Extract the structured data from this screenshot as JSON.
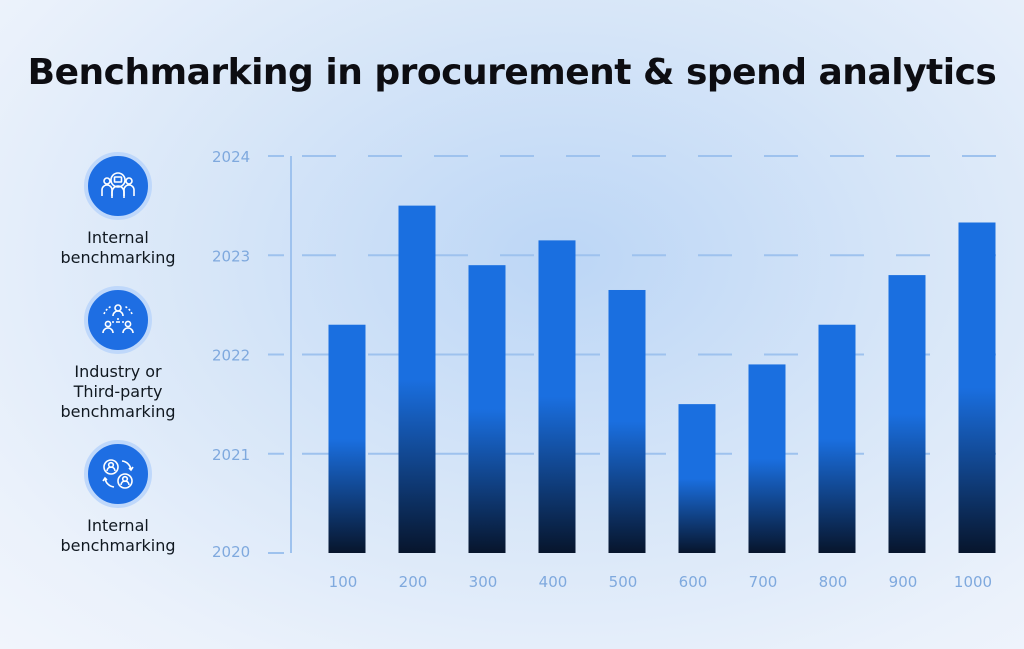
{
  "title": "Benchmarking in procurement & spend analytics",
  "legend": [
    {
      "icon": "team-analytics-icon",
      "lines": [
        "Internal",
        "benchmarking"
      ]
    },
    {
      "icon": "network-people-icon",
      "lines": [
        "Industry or",
        "Third-party",
        "benchmarking"
      ]
    },
    {
      "icon": "exchange-people-icon",
      "lines": [
        "Internal",
        "benchmarking"
      ]
    }
  ],
  "colors": {
    "bar_top": "#1a6fe0",
    "bar_bottom": "#07152c",
    "grid": "#9ec2ee",
    "tick": "#7fa9de",
    "badge": "#1e6ee3"
  },
  "chart_data": {
    "type": "bar",
    "title": "Benchmarking in procurement & spend analytics",
    "xlabel": "",
    "ylabel": "",
    "categories": [
      "100",
      "200",
      "300",
      "400",
      "500",
      "600",
      "700",
      "800",
      "900",
      "1000"
    ],
    "values": [
      2022.3,
      2023.5,
      2022.9,
      2023.15,
      2022.65,
      2021.5,
      2021.9,
      2022.3,
      2022.8,
      2023.33
    ],
    "yticks": [
      "2020",
      "2021",
      "2022",
      "2023",
      "2024"
    ],
    "ylim": [
      2020,
      2024
    ],
    "grid": true,
    "grid_style": "dashed"
  }
}
